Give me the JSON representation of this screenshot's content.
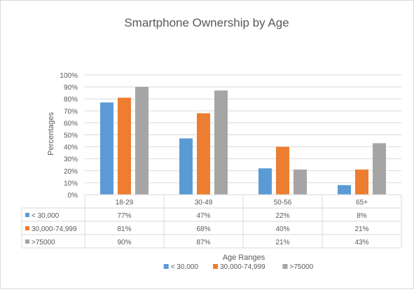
{
  "chart_data": {
    "type": "bar",
    "title": "Smartphone Ownership by Age",
    "xlabel": "Age  Ranges",
    "ylabel": "Percentages",
    "ylim": [
      0,
      100
    ],
    "yticks": [
      "0%",
      "10%",
      "20%",
      "30%",
      "40%",
      "50%",
      "60%",
      "70%",
      "80%",
      "90%",
      "100%"
    ],
    "grid": true,
    "legend": "bottom",
    "categories": [
      "18-29",
      "30-49",
      "50-56",
      "65+"
    ],
    "series": [
      {
        "name": "< 30,000",
        "color": "#5b9bd5",
        "values": [
          77,
          47,
          22,
          8
        ],
        "labels": [
          "77%",
          "47%",
          "22%",
          "8%"
        ]
      },
      {
        "name": "30,000-74,999",
        "color": "#ed7d31",
        "values": [
          81,
          68,
          40,
          21
        ],
        "labels": [
          "81%",
          "68%",
          "40%",
          "21%"
        ]
      },
      {
        "name": ">75000",
        "color": "#a5a5a5",
        "values": [
          90,
          87,
          21,
          43
        ],
        "labels": [
          "90%",
          "87%",
          "21%",
          "43%"
        ]
      }
    ],
    "table_displayed": true
  }
}
